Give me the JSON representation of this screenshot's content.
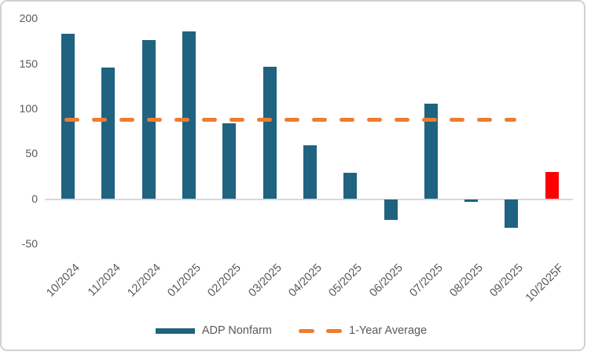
{
  "chart_data": {
    "type": "bar",
    "title": "",
    "categories": [
      "10/2024",
      "11/2024",
      "12/2024",
      "01/2025",
      "02/2025",
      "03/2025",
      "04/2025",
      "05/2025",
      "06/2025",
      "07/2025",
      "08/2025",
      "09/2025",
      "10/2025F"
    ],
    "series": [
      {
        "name": "ADP Nonfarm",
        "values": [
          184,
          146,
          177,
          186,
          84,
          147,
          60,
          29,
          -23,
          106,
          -3,
          -32,
          30
        ]
      }
    ],
    "forecast_index": 12,
    "average_line": {
      "name": "1-Year Average",
      "value": 88.4,
      "covers_first_n_categories": 12
    },
    "legend": [
      "ADP Nonfarm",
      "1-Year Average"
    ],
    "y_ticks": [
      200,
      150,
      100,
      50,
      0,
      -50
    ],
    "ylim": [
      -50,
      200
    ],
    "grid": "off",
    "legend_position": "bottom-center",
    "colors": {
      "bar": "#1f6380",
      "forecast_bar": "#fe0000",
      "average_line": "#ed7d31",
      "axis_text": "#595959",
      "axis_line": "#d9d9d9"
    }
  }
}
